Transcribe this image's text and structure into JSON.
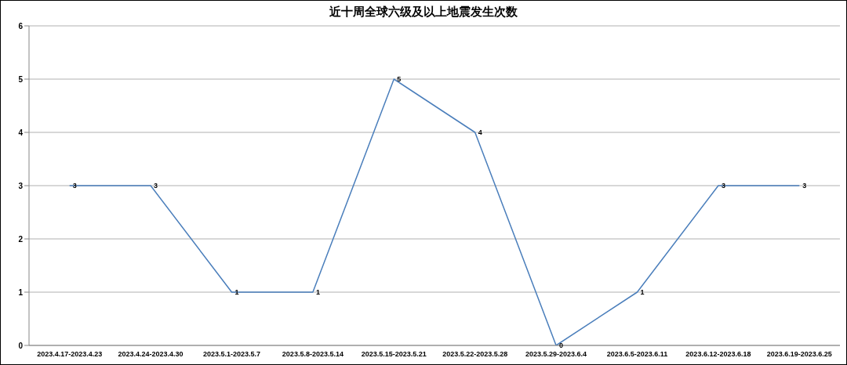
{
  "chart_data": {
    "type": "line",
    "title": "近十周全球六级及以上地震发生次数",
    "categories": [
      "2023.4.17-2023.4.23",
      "2023.4.24-2023.4.30",
      "2023.5.1-2023.5.7",
      "2023.5.8-2023.5.14",
      "2023.5.15-2023.5.21",
      "2023.5.22-2023.5.28",
      "2023.5.29-2023.6.4",
      "2023.6.5-2023.6.11",
      "2023.6.12-2023.6.18",
      "2023.6.19-2023.6.25"
    ],
    "series": [
      {
        "color": "#4a7ebb",
        "values": [
          3,
          3,
          1,
          1,
          5,
          4,
          0,
          1,
          3,
          3
        ]
      }
    ],
    "ylim": [
      0,
      6
    ],
    "yticks": [
      0,
      1,
      2,
      3,
      4,
      5,
      6
    ],
    "grid": "y",
    "legend": false,
    "marker": "none",
    "line_style": "solid",
    "data_labels": true
  }
}
